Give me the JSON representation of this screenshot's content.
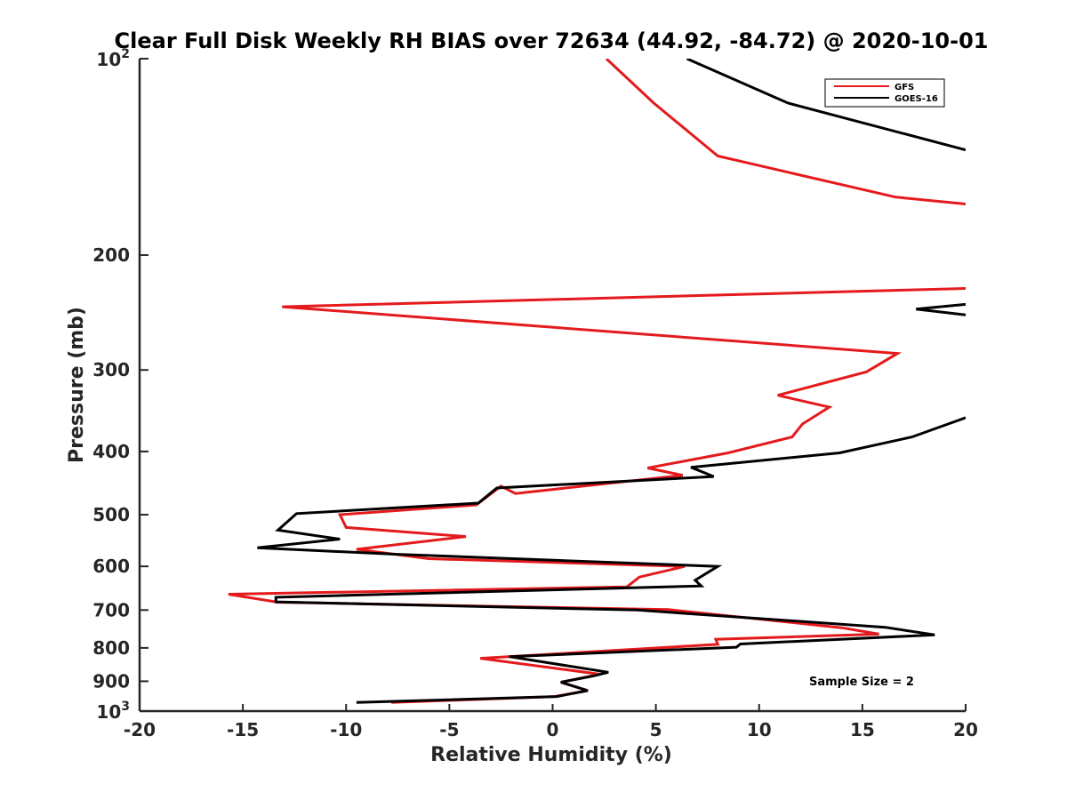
{
  "chart_data": {
    "type": "line",
    "title": "Clear Full Disk Weekly RH BIAS over 72634 (44.92, -84.72) @ 2020-10-01",
    "xlabel": "Relative Humidity (%)",
    "ylabel": "Pressure (mb)",
    "xlim": [
      -20,
      20
    ],
    "ylim": [
      100,
      1000
    ],
    "y_scale": "log",
    "y_reversed": true,
    "x_ticks": [
      "-20",
      "-15",
      "-10",
      "-5",
      "0",
      "5",
      "10",
      "15",
      "20"
    ],
    "y_ticks": [
      {
        "value": 200,
        "label": "200"
      },
      {
        "value": 300,
        "label": "300"
      },
      {
        "value": 400,
        "label": "400"
      },
      {
        "value": 500,
        "label": "500"
      },
      {
        "value": 600,
        "label": "600"
      },
      {
        "value": 700,
        "label": "700"
      },
      {
        "value": 800,
        "label": "800"
      },
      {
        "value": 900,
        "label": "900"
      }
    ],
    "y_tick_top": {
      "base": "10",
      "exp": "2"
    },
    "y_tick_bottom": {
      "base": "10",
      "exp": "3"
    },
    "legend_position": "top-right",
    "annotation": "Sample Size = 2",
    "series": [
      {
        "name": "GFS",
        "color": "#e41a1c",
        "points": [
          [
            2.6,
            100
          ],
          [
            4.9,
            117
          ],
          [
            8.0,
            141
          ],
          [
            16.6,
            163
          ],
          [
            20,
            167
          ],
          [
            null,
            null
          ],
          [
            20,
            225
          ],
          [
            -13.1,
            240
          ],
          [
            16.7,
            283
          ],
          [
            15.2,
            302
          ],
          [
            10.9,
            328
          ],
          [
            13.4,
            342
          ],
          [
            12.1,
            363
          ],
          [
            11.6,
            380
          ],
          [
            8.5,
            402
          ],
          [
            4.6,
            424
          ],
          [
            6.3,
            435
          ],
          [
            -1.8,
            464
          ],
          [
            -2.5,
            452
          ],
          [
            -3.7,
            483
          ],
          [
            -10.3,
            500
          ],
          [
            -10.0,
            523
          ],
          [
            -4.2,
            540
          ],
          [
            -9.5,
            565
          ],
          [
            -6.0,
            584
          ],
          [
            6.4,
            600
          ],
          [
            4.2,
            623
          ],
          [
            3.6,
            645
          ],
          [
            -15.7,
            662
          ],
          [
            -13.3,
            681
          ],
          [
            5.6,
            699
          ],
          [
            14.0,
            745
          ],
          [
            15.8,
            762
          ],
          [
            7.9,
            776
          ],
          [
            8.0,
            790
          ],
          [
            -3.5,
            830
          ],
          [
            2.3,
            878
          ],
          [
            0.4,
            903
          ],
          [
            1.7,
            930
          ],
          [
            0.1,
            950
          ],
          [
            -7.8,
            970
          ]
        ]
      },
      {
        "name": "GOES-16",
        "color": "#000000",
        "points": [
          [
            6.5,
            100
          ],
          [
            11.4,
            117
          ],
          [
            20,
            138
          ],
          [
            null,
            null
          ],
          [
            20,
            238
          ],
          [
            17.6,
            242
          ],
          [
            20,
            247
          ],
          [
            null,
            null
          ],
          [
            20,
            355
          ],
          [
            17.4,
            380
          ],
          [
            13.9,
            402
          ],
          [
            6.7,
            423
          ],
          [
            7.8,
            437
          ],
          [
            -2.7,
            455
          ],
          [
            -3.6,
            480
          ],
          [
            -12.4,
            498
          ],
          [
            -13.3,
            528
          ],
          [
            -10.3,
            545
          ],
          [
            -14.3,
            562
          ],
          [
            -7.5,
            575
          ],
          [
            8.0,
            600
          ],
          [
            6.9,
            630
          ],
          [
            7.2,
            643
          ],
          [
            -13.4,
            669
          ],
          [
            -13.4,
            680
          ],
          [
            4.1,
            700
          ],
          [
            16.1,
            744
          ],
          [
            18.5,
            764
          ],
          [
            9.1,
            789
          ],
          [
            8.9,
            798
          ],
          [
            -2.1,
            825
          ],
          [
            2.7,
            872
          ],
          [
            2.0,
            883
          ],
          [
            0.4,
            903
          ],
          [
            1.7,
            930
          ],
          [
            0.2,
            950
          ],
          [
            -9.5,
            970
          ]
        ]
      }
    ]
  }
}
